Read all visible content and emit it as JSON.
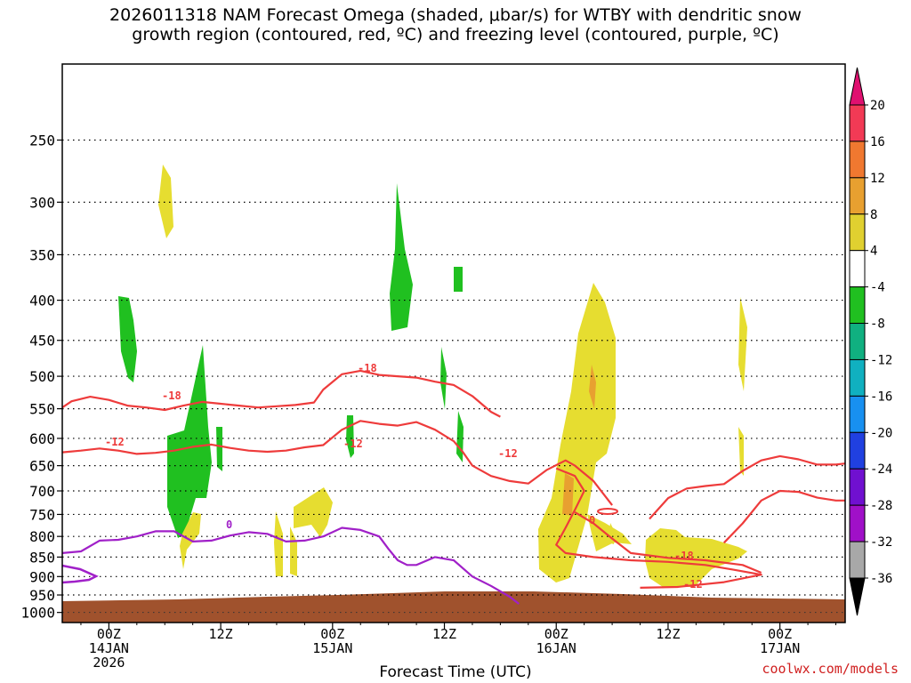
{
  "chart_data": {
    "type": "time-height contour",
    "title_line1": "2026011318 NAM Forecast Omega (shaded, μbar/s) for WTBY with dendritic snow",
    "title_line2": "growth region (contoured, red, ºC) and freezing level (contoured, purple, ºC)",
    "xlabel": "Forecast Time (UTC)",
    "credit": "coolwx.com/models",
    "y_ticks": [
      250,
      300,
      350,
      400,
      450,
      500,
      550,
      600,
      650,
      700,
      750,
      800,
      850,
      900,
      950,
      1000
    ],
    "y_range_hpa": [
      200,
      1030
    ],
    "x_range_hours": [
      -5,
      79
    ],
    "x_ticks": [
      {
        "hour": 0,
        "lines": [
          "00Z",
          "14JAN",
          "2026"
        ]
      },
      {
        "hour": 12,
        "lines": [
          "12Z"
        ]
      },
      {
        "hour": 24,
        "lines": [
          "00Z",
          "15JAN"
        ]
      },
      {
        "hour": 36,
        "lines": [
          "12Z"
        ]
      },
      {
        "hour": 48,
        "lines": [
          "00Z",
          "16JAN"
        ]
      },
      {
        "hour": 60,
        "lines": [
          "12Z"
        ]
      },
      {
        "hour": 72,
        "lines": [
          "00Z",
          "17JAN"
        ]
      }
    ],
    "colorbar": {
      "labels": [
        "20",
        "16",
        "12",
        "8",
        "4",
        "-4",
        "-8",
        "-12",
        "-16",
        "-20",
        "-24",
        "-28",
        "-32",
        "-36"
      ],
      "colors": [
        "#f23a55",
        "#f07830",
        "#e8a030",
        "#e0d030",
        "#ffffff",
        "#20c020",
        "#10b080",
        "#10b0c0",
        "#1890f0",
        "#2040e0",
        "#7010d0",
        "#a010c8",
        "#a8a8a8"
      ],
      "top_arrow_color": "#e01070",
      "bottom_arrow_color": "#000000"
    },
    "contour_labels": [
      {
        "text": "-18",
        "color": "#ee3b3b"
      },
      {
        "text": "-18",
        "color": "#ee3b3b"
      },
      {
        "text": "-12",
        "color": "#ee3b3b"
      },
      {
        "text": "-12",
        "color": "#ee3b3b"
      },
      {
        "text": "-12",
        "color": "#ee3b3b"
      },
      {
        "text": "0",
        "color": "#ee3b3b"
      },
      {
        "text": "-18",
        "color": "#ee3b3b"
      },
      {
        "text": "-12",
        "color": "#ee3b3b"
      },
      {
        "text": "0",
        "color": "#a020c8"
      }
    ],
    "contours": [
      {
        "name": "minus18-line",
        "color": "#ee3b3b",
        "points": [
          [
            -5,
            548
          ],
          [
            -4,
            538
          ],
          [
            -2,
            531
          ],
          [
            0,
            536
          ],
          [
            2,
            545
          ],
          [
            4,
            548
          ],
          [
            6,
            552
          ],
          [
            8,
            545
          ],
          [
            10,
            539
          ],
          [
            12,
            542
          ],
          [
            14,
            545
          ],
          [
            16,
            548
          ],
          [
            18,
            546
          ],
          [
            20,
            544
          ],
          [
            22,
            540
          ],
          [
            23,
            520
          ],
          [
            25,
            497
          ],
          [
            27,
            492
          ],
          [
            29,
            498
          ],
          [
            31,
            500
          ],
          [
            33,
            502
          ],
          [
            35,
            508
          ],
          [
            37,
            513
          ],
          [
            39,
            530
          ],
          [
            41,
            555
          ],
          [
            42,
            563
          ]
        ]
      },
      {
        "name": "minus12-line-a",
        "color": "#ee3b3b",
        "points": [
          [
            -5,
            625
          ],
          [
            -3,
            622
          ],
          [
            -1,
            618
          ],
          [
            1,
            622
          ],
          [
            3,
            628
          ],
          [
            5,
            626
          ],
          [
            7,
            622
          ],
          [
            9,
            615
          ],
          [
            11,
            611
          ],
          [
            13,
            617
          ],
          [
            15,
            622
          ],
          [
            17,
            624
          ],
          [
            19,
            622
          ],
          [
            21,
            616
          ],
          [
            23,
            612
          ],
          [
            25,
            585
          ],
          [
            27,
            570
          ],
          [
            29,
            575
          ],
          [
            31,
            578
          ],
          [
            33,
            572
          ],
          [
            35,
            585
          ],
          [
            37,
            605
          ],
          [
            38,
            625
          ],
          [
            39,
            650
          ],
          [
            41,
            670
          ],
          [
            43,
            680
          ],
          [
            45,
            685
          ],
          [
            47,
            658
          ],
          [
            49,
            640
          ],
          [
            50,
            650
          ],
          [
            52,
            680
          ],
          [
            54,
            730
          ]
        ]
      },
      {
        "name": "minus12-line-b",
        "color": "#ee3b3b",
        "points": [
          [
            48,
            655
          ],
          [
            50,
            670
          ],
          [
            51,
            700
          ],
          [
            50,
            740
          ],
          [
            49,
            780
          ],
          [
            48,
            820
          ],
          [
            49,
            840
          ],
          [
            52,
            850
          ],
          [
            56,
            858
          ],
          [
            60,
            862
          ],
          [
            64,
            870
          ],
          [
            67,
            882
          ],
          [
            70,
            895
          ],
          [
            66,
            915
          ],
          [
            61,
            928
          ],
          [
            57,
            930
          ]
        ]
      },
      {
        "name": "minus18-line-b",
        "color": "#ee3b3b",
        "points": [
          [
            50,
            745
          ],
          [
            52,
            770
          ],
          [
            54,
            805
          ],
          [
            56,
            840
          ],
          [
            60,
            852
          ],
          [
            64,
            858
          ],
          [
            68,
            870
          ],
          [
            70,
            890
          ]
        ]
      },
      {
        "name": "minus12-line-c",
        "color": "#ee3b3b",
        "points": [
          [
            58,
            760
          ],
          [
            60,
            715
          ],
          [
            62,
            695
          ],
          [
            64,
            690
          ],
          [
            66,
            686
          ],
          [
            68,
            660
          ],
          [
            70,
            640
          ],
          [
            72,
            632
          ],
          [
            74,
            638
          ],
          [
            76,
            648
          ],
          [
            78,
            648
          ],
          [
            79,
            646
          ]
        ]
      },
      {
        "name": "minus18-line-c",
        "color": "#ee3b3b",
        "points": [
          [
            66,
            815
          ],
          [
            68,
            770
          ],
          [
            70,
            720
          ],
          [
            72,
            700
          ],
          [
            74,
            702
          ],
          [
            76,
            714
          ],
          [
            78,
            720
          ],
          [
            79,
            720
          ]
        ]
      },
      {
        "name": "zero-line-purple",
        "color": "#a020c8",
        "points": [
          [
            -5,
            840
          ],
          [
            -3,
            836
          ],
          [
            -1,
            810
          ],
          [
            1,
            808
          ],
          [
            3,
            800
          ],
          [
            5,
            788
          ],
          [
            7,
            788
          ],
          [
            9,
            812
          ],
          [
            11,
            810
          ],
          [
            13,
            798
          ],
          [
            15,
            790
          ],
          [
            17,
            794
          ],
          [
            19,
            812
          ],
          [
            21,
            810
          ],
          [
            23,
            800
          ],
          [
            25,
            780
          ],
          [
            27,
            785
          ],
          [
            29,
            800
          ],
          [
            30,
            830
          ],
          [
            31,
            858
          ],
          [
            32,
            870
          ],
          [
            33,
            870
          ],
          [
            35,
            850
          ],
          [
            37,
            858
          ],
          [
            39,
            900
          ],
          [
            41,
            925
          ],
          [
            43,
            955
          ],
          [
            44,
            975
          ]
        ]
      }
    ]
  }
}
